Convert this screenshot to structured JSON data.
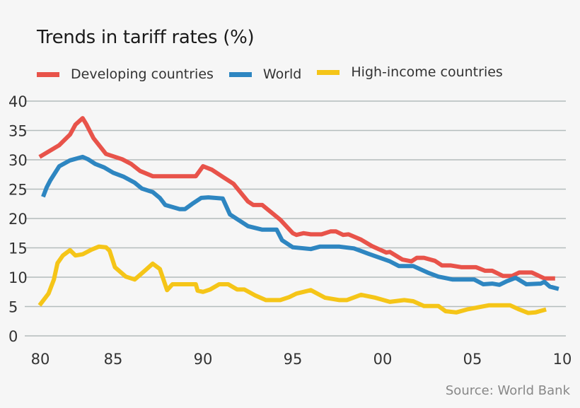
{
  "chart_data": {
    "type": "line",
    "title": "Trends in tariff rates (%)",
    "source": "Source: World Bank",
    "xlabel": "",
    "ylabel": "",
    "xlim": [
      1980.9,
      2010.2
    ],
    "ylim": [
      0,
      40
    ],
    "grid": true,
    "legend_placement": "top",
    "x_ticks": [
      {
        "value": 1980.9,
        "label": "80"
      },
      {
        "value": 1985,
        "label": "85"
      },
      {
        "value": 1990,
        "label": "90"
      },
      {
        "value": 1995,
        "label": "95"
      },
      {
        "value": 2000,
        "label": "00"
      },
      {
        "value": 2005,
        "label": "05"
      },
      {
        "value": 2010,
        "label": "10"
      }
    ],
    "y_ticks": [
      {
        "value": 0,
        "label": "0"
      },
      {
        "value": 5,
        "label": "5"
      },
      {
        "value": 10,
        "label": "10"
      },
      {
        "value": 15,
        "label": "15"
      },
      {
        "value": 20,
        "label": "20"
      },
      {
        "value": 25,
        "label": "25"
      },
      {
        "value": 30,
        "label": "30"
      },
      {
        "value": 35,
        "label": "35"
      },
      {
        "value": 40,
        "label": "40"
      }
    ],
    "series": [
      {
        "name": "Developing countries",
        "color": "#e8534a",
        "points": [
          [
            1980.9,
            30.5
          ],
          [
            1982.0,
            32.5
          ],
          [
            1982.6,
            34.3
          ],
          [
            1982.9,
            36.0
          ],
          [
            1983.3,
            37.1
          ],
          [
            1983.5,
            36.1
          ],
          [
            1983.9,
            33.7
          ],
          [
            1984.6,
            31.0
          ],
          [
            1985.5,
            30.1
          ],
          [
            1986.0,
            29.3
          ],
          [
            1986.5,
            28.1
          ],
          [
            1987.2,
            27.2
          ],
          [
            1988.0,
            27.2
          ],
          [
            1989.6,
            27.2
          ],
          [
            1990.0,
            28.9
          ],
          [
            1990.5,
            28.3
          ],
          [
            1991.1,
            27.1
          ],
          [
            1991.7,
            25.9
          ],
          [
            1992.5,
            22.9
          ],
          [
            1992.8,
            22.3
          ],
          [
            1993.3,
            22.3
          ],
          [
            1994.3,
            19.8
          ],
          [
            1995.0,
            17.5
          ],
          [
            1995.2,
            17.2
          ],
          [
            1995.6,
            17.5
          ],
          [
            1996.0,
            17.3
          ],
          [
            1996.6,
            17.3
          ],
          [
            1997.1,
            17.8
          ],
          [
            1997.4,
            17.8
          ],
          [
            1997.8,
            17.2
          ],
          [
            1998.1,
            17.3
          ],
          [
            1998.8,
            16.4
          ],
          [
            1999.4,
            15.3
          ],
          [
            2000.2,
            14.2
          ],
          [
            2000.4,
            14.3
          ],
          [
            2001.1,
            13.0
          ],
          [
            2001.6,
            12.7
          ],
          [
            2001.9,
            13.3
          ],
          [
            2002.3,
            13.3
          ],
          [
            2002.9,
            12.8
          ],
          [
            2003.3,
            12.0
          ],
          [
            2003.8,
            12.0
          ],
          [
            2004.4,
            11.7
          ],
          [
            2005.2,
            11.7
          ],
          [
            2005.7,
            11.1
          ],
          [
            2006.1,
            11.1
          ],
          [
            2006.7,
            10.2
          ],
          [
            2007.2,
            10.2
          ],
          [
            2007.6,
            10.8
          ],
          [
            2008.3,
            10.8
          ],
          [
            2009.0,
            9.8
          ],
          [
            2009.6,
            9.8
          ]
        ]
      },
      {
        "name": "World",
        "color": "#2e86c1",
        "points": [
          [
            1981.1,
            23.7
          ],
          [
            1981.3,
            25.3
          ],
          [
            1981.5,
            26.5
          ],
          [
            1982.0,
            28.9
          ],
          [
            1982.6,
            29.9
          ],
          [
            1983.3,
            30.5
          ],
          [
            1983.6,
            30.1
          ],
          [
            1984.0,
            29.3
          ],
          [
            1984.5,
            28.7
          ],
          [
            1985.0,
            27.8
          ],
          [
            1985.6,
            27.1
          ],
          [
            1986.2,
            26.1
          ],
          [
            1986.6,
            25.1
          ],
          [
            1987.2,
            24.5
          ],
          [
            1987.6,
            23.5
          ],
          [
            1987.9,
            22.3
          ],
          [
            1988.7,
            21.6
          ],
          [
            1989.0,
            21.6
          ],
          [
            1989.4,
            22.5
          ],
          [
            1989.9,
            23.5
          ],
          [
            1990.3,
            23.6
          ],
          [
            1991.1,
            23.4
          ],
          [
            1991.5,
            20.7
          ],
          [
            1992.5,
            18.7
          ],
          [
            1993.3,
            18.1
          ],
          [
            1994.1,
            18.1
          ],
          [
            1994.4,
            16.3
          ],
          [
            1995.0,
            15.1
          ],
          [
            1996.0,
            14.8
          ],
          [
            1996.5,
            15.2
          ],
          [
            1997.6,
            15.2
          ],
          [
            1998.4,
            14.9
          ],
          [
            1999.2,
            14.0
          ],
          [
            2000.4,
            12.7
          ],
          [
            2000.9,
            11.9
          ],
          [
            2001.7,
            11.9
          ],
          [
            2002.5,
            10.8
          ],
          [
            2003.1,
            10.1
          ],
          [
            2003.9,
            9.6
          ],
          [
            2005.1,
            9.6
          ],
          [
            2005.6,
            8.8
          ],
          [
            2006.1,
            8.9
          ],
          [
            2006.5,
            8.7
          ],
          [
            2006.9,
            9.3
          ],
          [
            2007.4,
            9.9
          ],
          [
            2008.0,
            8.8
          ],
          [
            2008.8,
            8.9
          ],
          [
            2009.0,
            9.2
          ],
          [
            2009.3,
            8.4
          ],
          [
            2009.8,
            8.0
          ]
        ]
      },
      {
        "name": "High-income countries",
        "color": "#f5c518",
        "points": [
          [
            1980.9,
            5.2
          ],
          [
            1981.4,
            7.2
          ],
          [
            1981.7,
            9.6
          ],
          [
            1981.9,
            12.4
          ],
          [
            1982.2,
            13.7
          ],
          [
            1982.6,
            14.6
          ],
          [
            1982.9,
            13.7
          ],
          [
            1983.3,
            13.9
          ],
          [
            1983.8,
            14.7
          ],
          [
            1984.2,
            15.2
          ],
          [
            1984.6,
            15.1
          ],
          [
            1984.8,
            14.5
          ],
          [
            1985.1,
            11.7
          ],
          [
            1985.7,
            10.1
          ],
          [
            1986.2,
            9.6
          ],
          [
            1986.8,
            11.2
          ],
          [
            1987.2,
            12.3
          ],
          [
            1987.6,
            11.4
          ],
          [
            1988.0,
            7.8
          ],
          [
            1988.3,
            8.8
          ],
          [
            1989.6,
            8.8
          ],
          [
            1989.7,
            7.7
          ],
          [
            1990.0,
            7.5
          ],
          [
            1990.4,
            7.9
          ],
          [
            1990.9,
            8.8
          ],
          [
            1991.4,
            8.8
          ],
          [
            1991.9,
            7.9
          ],
          [
            1992.3,
            7.9
          ],
          [
            1992.9,
            6.9
          ],
          [
            1993.5,
            6.1
          ],
          [
            1994.3,
            6.1
          ],
          [
            1994.8,
            6.6
          ],
          [
            1995.2,
            7.2
          ],
          [
            1996.0,
            7.8
          ],
          [
            1996.8,
            6.5
          ],
          [
            1997.6,
            6.1
          ],
          [
            1998.0,
            6.1
          ],
          [
            1998.8,
            7.0
          ],
          [
            1999.6,
            6.5
          ],
          [
            2000.4,
            5.8
          ],
          [
            2001.2,
            6.1
          ],
          [
            2001.7,
            5.9
          ],
          [
            2002.3,
            5.1
          ],
          [
            2003.1,
            5.1
          ],
          [
            2003.5,
            4.2
          ],
          [
            2004.1,
            4.0
          ],
          [
            2004.7,
            4.5
          ],
          [
            2005.9,
            5.2
          ],
          [
            2007.1,
            5.2
          ],
          [
            2007.6,
            4.5
          ],
          [
            2008.1,
            3.9
          ],
          [
            2008.5,
            4.0
          ],
          [
            2009.1,
            4.5
          ]
        ]
      }
    ]
  }
}
